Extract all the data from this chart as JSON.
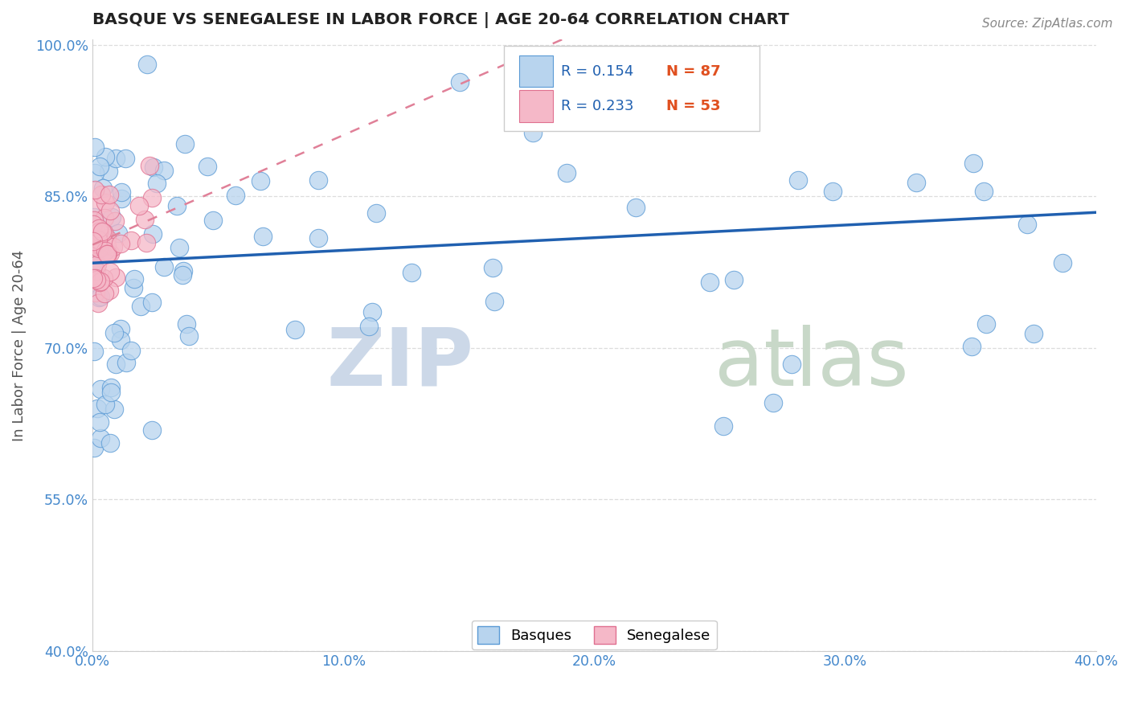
{
  "title": "BASQUE VS SENEGALESE IN LABOR FORCE | AGE 20-64 CORRELATION CHART",
  "source_text": "Source: ZipAtlas.com",
  "ylabel": "In Labor Force | Age 20-64",
  "xlim": [
    0.0,
    0.4
  ],
  "ylim": [
    0.4,
    1.005
  ],
  "xticks": [
    0.0,
    0.1,
    0.2,
    0.3,
    0.4
  ],
  "yticks": [
    0.4,
    0.55,
    0.7,
    0.85,
    1.0
  ],
  "xticklabels": [
    "0.0%",
    "10.0%",
    "20.0%",
    "30.0%",
    "40.0%"
  ],
  "yticklabels": [
    "40.0%",
    "55.0%",
    "70.0%",
    "85.0%",
    "100.0%"
  ],
  "basque_fill": "#b8d4ee",
  "basque_edge": "#5a9ad5",
  "senegalese_fill": "#f5b8c8",
  "senegalese_edge": "#e07090",
  "basque_line_color": "#2060b0",
  "senegalese_line_color": "#e08098",
  "tick_color": "#4488cc",
  "R_basque": 0.154,
  "N_basque": 87,
  "R_senegalese": 0.233,
  "N_senegalese": 53,
  "grid_color": "#dddddd",
  "watermark_zip_color": "#ccd8e8",
  "watermark_atlas_color": "#c8d8c8"
}
